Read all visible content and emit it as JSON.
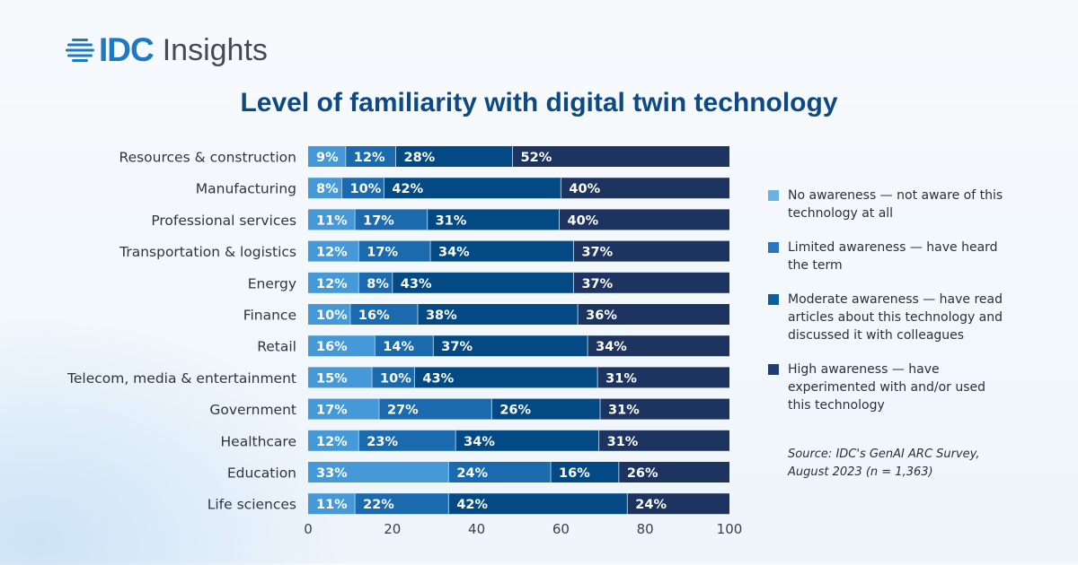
{
  "header": {
    "logo_brand": "IDC",
    "logo_product": "Insights"
  },
  "chart_data": {
    "type": "bar",
    "orientation": "horizontal",
    "stacked": true,
    "title": "Level of familiarity with digital twin technology",
    "xlabel": "",
    "ylabel": "",
    "xlim": [
      0,
      100
    ],
    "xticks": [
      0,
      20,
      40,
      60,
      80,
      100
    ],
    "grid": false,
    "legend_position": "right",
    "categories": [
      "Resources & construction",
      "Manufacturing",
      "Professional services",
      "Transportation & logistics",
      "Energy",
      "Finance",
      "Retail",
      "Telecom, media & entertainment",
      "Government",
      "Healthcare",
      "Education",
      "Life sciences"
    ],
    "series": [
      {
        "name": "No awareness — not aware of this technology at all",
        "color": "#4499d6",
        "values": [
          9,
          8,
          11,
          12,
          12,
          10,
          16,
          15,
          17,
          12,
          33,
          11
        ]
      },
      {
        "name": "Limited awareness — have heard the term",
        "color": "#1a6aad",
        "values": [
          12,
          10,
          17,
          17,
          8,
          16,
          14,
          10,
          27,
          23,
          24,
          22
        ]
      },
      {
        "name": "Moderate awareness — have read articles about this technology and discussed it with colleagues",
        "color": "#034a84",
        "values": [
          28,
          42,
          31,
          34,
          43,
          38,
          37,
          43,
          26,
          34,
          16,
          42
        ]
      },
      {
        "name": "High awareness — have experimented with and/or used this technology",
        "color": "#1d3461",
        "values": [
          52,
          40,
          40,
          37,
          37,
          36,
          34,
          31,
          31,
          31,
          26,
          24
        ]
      }
    ],
    "value_label_suffix": "%",
    "source": "Source: IDC's GenAI ARC Survey, August 2023 (n = 1,363)"
  },
  "legend": {
    "items": [
      {
        "label": "No awareness — not aware of this technology at all",
        "color": "#6ab1e4"
      },
      {
        "label": "Limited awareness — have heard the term",
        "color": "#2677c0"
      },
      {
        "label": "Moderate awareness — have read articles about this technology and discussed it with colleagues",
        "color": "#0d5fa0"
      },
      {
        "label": "High awareness — have experimented with and/or used this technology",
        "color": "#1d3e72"
      }
    ]
  }
}
